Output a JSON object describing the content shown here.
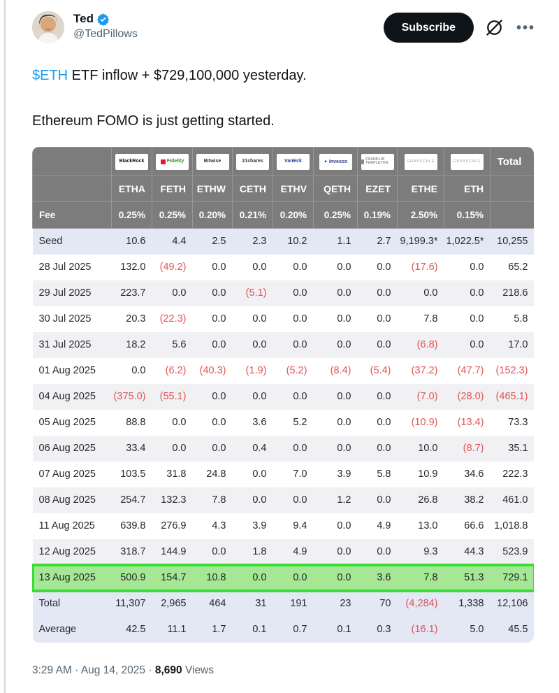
{
  "header": {
    "name": "Ted",
    "handle": "@TedPillows",
    "subscribe_label": "Subscribe",
    "verified_badge": "verified-badge",
    "grok_icon": "grok-icon",
    "more_icon": "…"
  },
  "tweet": {
    "cashtag": "$ETH",
    "line1_rest": " ETF inflow + $729,100,000 yesterday.",
    "line2": "Ethereum FOMO is just getting started."
  },
  "table": {
    "fee_label": "Fee",
    "total_label": "Total",
    "issuers": [
      {
        "name": "BlackRock",
        "color": "#111111",
        "style": "bold"
      },
      {
        "name": "Fidelity",
        "color": "#3f8a2a",
        "accent": "#e31837",
        "accent_shape": "square"
      },
      {
        "name": "Bitwise",
        "color": "#33383d"
      },
      {
        "name": "21shares",
        "color": "#33383d"
      },
      {
        "name": "VanEck",
        "color": "#1d3c8f",
        "style": "bold"
      },
      {
        "name": "Invesco",
        "color": "#2b3a8f",
        "accent": "#2b3a8f",
        "accent_shape": "triangle"
      },
      {
        "name": "FRANKLIN TEMPLETON",
        "color": "#8a8a8a",
        "style": "wrap2",
        "accent": "#8a8a8a",
        "accent_shape": "square"
      },
      {
        "name": "GRAYSCALE",
        "color": "#9a9a9a",
        "style": "caps"
      },
      {
        "name": "GRAYSCALE",
        "color": "#9a9a9a",
        "style": "caps"
      }
    ],
    "tickers": [
      "ETHA",
      "FETH",
      "ETHW",
      "CETH",
      "ETHV",
      "QETH",
      "EZET",
      "ETHE",
      "ETH"
    ],
    "fees": [
      "0.25%",
      "0.25%",
      "0.20%",
      "0.21%",
      "0.20%",
      "0.25%",
      "0.19%",
      "2.50%",
      "0.15%"
    ],
    "rows": [
      {
        "label": "Seed",
        "variant": "summary",
        "values": [
          "10.6",
          "4.4",
          "2.5",
          "2.3",
          "10.2",
          "1.1",
          "2.7",
          "9,199.3*",
          "1,022.5*",
          "10,255"
        ]
      },
      {
        "label": "28 Jul 2025",
        "variant": "white",
        "values": [
          "132.0",
          "(49.2)",
          "0.0",
          "0.0",
          "0.0",
          "0.0",
          "0.0",
          "(17.6)",
          "0.0",
          "65.2"
        ]
      },
      {
        "label": "29 Jul 2025",
        "variant": "alt",
        "values": [
          "223.7",
          "0.0",
          "0.0",
          "(5.1)",
          "0.0",
          "0.0",
          "0.0",
          "0.0",
          "0.0",
          "218.6"
        ]
      },
      {
        "label": "30 Jul 2025",
        "variant": "white",
        "values": [
          "20.3",
          "(22.3)",
          "0.0",
          "0.0",
          "0.0",
          "0.0",
          "0.0",
          "7.8",
          "0.0",
          "5.8"
        ]
      },
      {
        "label": "31 Jul 2025",
        "variant": "alt",
        "values": [
          "18.2",
          "5.6",
          "0.0",
          "0.0",
          "0.0",
          "0.0",
          "0.0",
          "(6.8)",
          "0.0",
          "17.0"
        ]
      },
      {
        "label": "01 Aug 2025",
        "variant": "white",
        "values": [
          "0.0",
          "(6.2)",
          "(40.3)",
          "(1.9)",
          "(5.2)",
          "(8.4)",
          "(5.4)",
          "(37.2)",
          "(47.7)",
          "(152.3)"
        ]
      },
      {
        "label": "04 Aug 2025",
        "variant": "alt",
        "values": [
          "(375.0)",
          "(55.1)",
          "0.0",
          "0.0",
          "0.0",
          "0.0",
          "0.0",
          "(7.0)",
          "(28.0)",
          "(465.1)"
        ]
      },
      {
        "label": "05 Aug 2025",
        "variant": "white",
        "values": [
          "88.8",
          "0.0",
          "0.0",
          "3.6",
          "5.2",
          "0.0",
          "0.0",
          "(10.9)",
          "(13.4)",
          "73.3"
        ]
      },
      {
        "label": "06 Aug 2025",
        "variant": "alt",
        "values": [
          "33.4",
          "0.0",
          "0.0",
          "0.4",
          "0.0",
          "0.0",
          "0.0",
          "10.0",
          "(8.7)",
          "35.1"
        ]
      },
      {
        "label": "07 Aug 2025",
        "variant": "white",
        "values": [
          "103.5",
          "31.8",
          "24.8",
          "0.0",
          "7.0",
          "3.9",
          "5.8",
          "10.9",
          "34.6",
          "222.3"
        ]
      },
      {
        "label": "08 Aug 2025",
        "variant": "alt",
        "values": [
          "254.7",
          "132.3",
          "7.8",
          "0.0",
          "0.0",
          "1.2",
          "0.0",
          "26.8",
          "38.2",
          "461.0"
        ]
      },
      {
        "label": "11 Aug 2025",
        "variant": "white",
        "values": [
          "639.8",
          "276.9",
          "4.3",
          "3.9",
          "9.4",
          "0.0",
          "4.9",
          "13.0",
          "66.6",
          "1,018.8"
        ]
      },
      {
        "label": "12 Aug 2025",
        "variant": "alt",
        "values": [
          "318.7",
          "144.9",
          "0.0",
          "1.8",
          "4.9",
          "0.0",
          "0.0",
          "9.3",
          "44.3",
          "523.9"
        ]
      },
      {
        "label": "13 Aug 2025",
        "variant": "highlight",
        "values": [
          "500.9",
          "154.7",
          "10.8",
          "0.0",
          "0.0",
          "0.0",
          "3.6",
          "7.8",
          "51.3",
          "729.1"
        ]
      },
      {
        "label": "Total",
        "variant": "summary",
        "values": [
          "11,307",
          "2,965",
          "464",
          "31",
          "191",
          "23",
          "70",
          "(4,284)",
          "1,338",
          "12,106"
        ]
      },
      {
        "label": "Average",
        "variant": "summary",
        "values": [
          "42.5",
          "11.1",
          "1.7",
          "0.1",
          "0.7",
          "0.1",
          "0.3",
          "(16.1)",
          "5.0",
          "45.5"
        ]
      }
    ]
  },
  "footer": {
    "time": "3:29 AM",
    "separator": "·",
    "date": "Aug 14, 2025",
    "views_count": "8,690",
    "views_label": "Views"
  },
  "colors": {
    "accent_blue": "#1d9bf0",
    "negative_red": "#e25454",
    "header_grey": "#7c7c7c",
    "summary_bg": "#e4e7f4",
    "alt_bg": "#f1f1f4",
    "highlight_bg": "#a5e794",
    "highlight_border": "#35df38"
  }
}
